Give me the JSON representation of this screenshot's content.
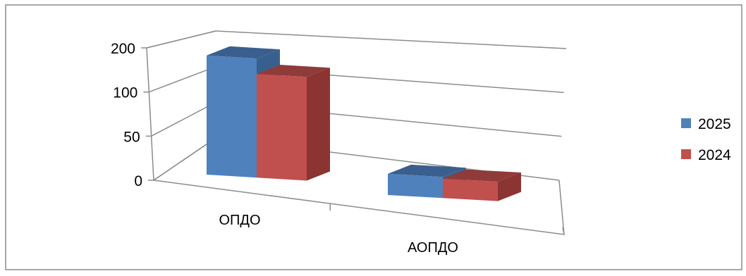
{
  "chart_data": {
    "type": "bar",
    "title": "",
    "xlabel": "",
    "ylabel": "",
    "categories": [
      "ОПДО",
      "АОПДО"
    ],
    "series": [
      {
        "name": "2025",
        "values": [
          170,
          24
        ],
        "color": "#4F81BD",
        "top_color": "#3A5F8E",
        "side_color": "#38608F"
      },
      {
        "name": "2024",
        "values": [
          135,
          22
        ],
        "color": "#C0504D",
        "top_color": "#8F3B39",
        "side_color": "#8C3431"
      }
    ],
    "y_ticks": [
      0,
      50,
      100,
      200
    ],
    "y_tick_labels": [
      "0",
      "50",
      "100",
      "200"
    ],
    "legend_position": "right",
    "gridlines": true
  }
}
